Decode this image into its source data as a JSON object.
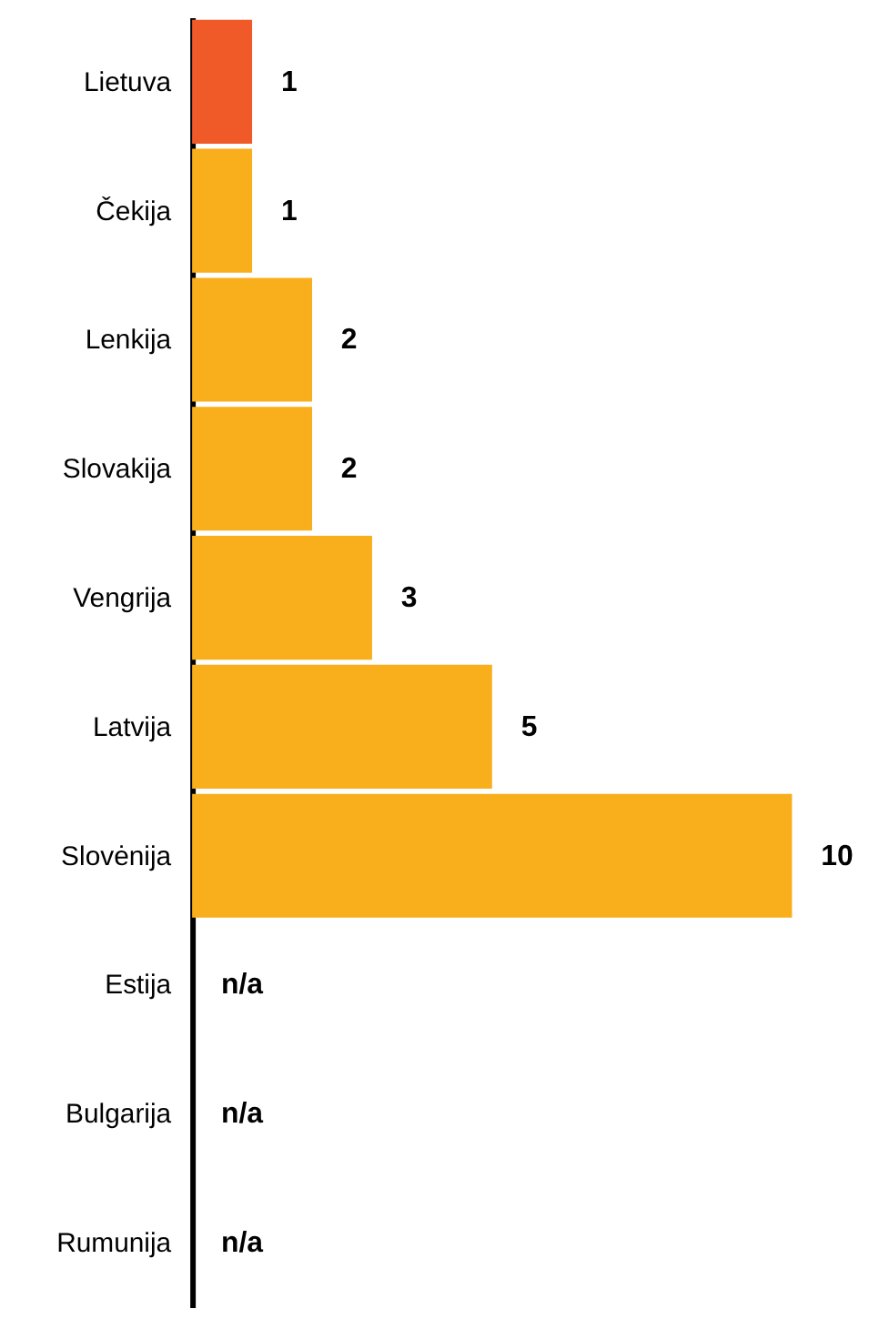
{
  "chart_data": {
    "type": "bar",
    "orientation": "horizontal",
    "categories": [
      "Lietuva",
      "Čekija",
      "Lenkija",
      "Slovakija",
      "Vengrija",
      "Latvija",
      "Slovėnija",
      "Estija",
      "Bulgarija",
      "Rumunija"
    ],
    "values": [
      1,
      1,
      2,
      2,
      3,
      5,
      10,
      null,
      null,
      null
    ],
    "value_labels": [
      "1",
      "1",
      "2",
      "2",
      "3",
      "5",
      "10",
      "n/a",
      "n/a",
      "n/a"
    ],
    "colors": [
      "#f05a28",
      "#f9ae1b",
      "#f9ae1b",
      "#f9ae1b",
      "#f9ae1b",
      "#f9ae1b",
      "#f9ae1b",
      "#f9ae1b",
      "#f9ae1b",
      "#f9ae1b"
    ]
  }
}
